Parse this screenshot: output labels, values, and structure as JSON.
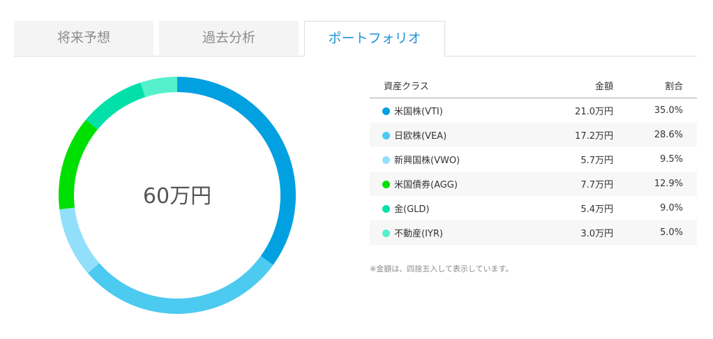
{
  "tabs": [
    {
      "label": "将来予想"
    },
    {
      "label": "過去分析"
    },
    {
      "label": "ポートフォリオ"
    }
  ],
  "active_tab": 2,
  "donut": {
    "center_label": "60万円"
  },
  "table": {
    "headers": {
      "asset_class": "資産クラス",
      "amount": "金額",
      "ratio": "割合"
    }
  },
  "chart_data": {
    "type": "pie",
    "total_label": "60万円",
    "categories": [
      "米国株(VTI)",
      "日欧株(VEA)",
      "新興国株(VWO)",
      "米国債券(AGG)",
      "金(GLD)",
      "不動産(IYR)"
    ],
    "amount_labels": [
      "21.0万円",
      "17.2万円",
      "5.7万円",
      "7.7万円",
      "5.4万円",
      "3.0万円"
    ],
    "percent_labels": [
      "35.0%",
      "28.6%",
      "9.5%",
      "12.9%",
      "9.0%",
      "5.0%"
    ],
    "values": [
      35.0,
      28.6,
      9.5,
      12.9,
      9.0,
      5.0
    ],
    "colors": [
      "#00a0e1",
      "#4ccaf0",
      "#91dffb",
      "#00e000",
      "#00e0a8",
      "#55f0cc"
    ]
  },
  "footnote": "※金額は、四捨五入して表示しています。"
}
